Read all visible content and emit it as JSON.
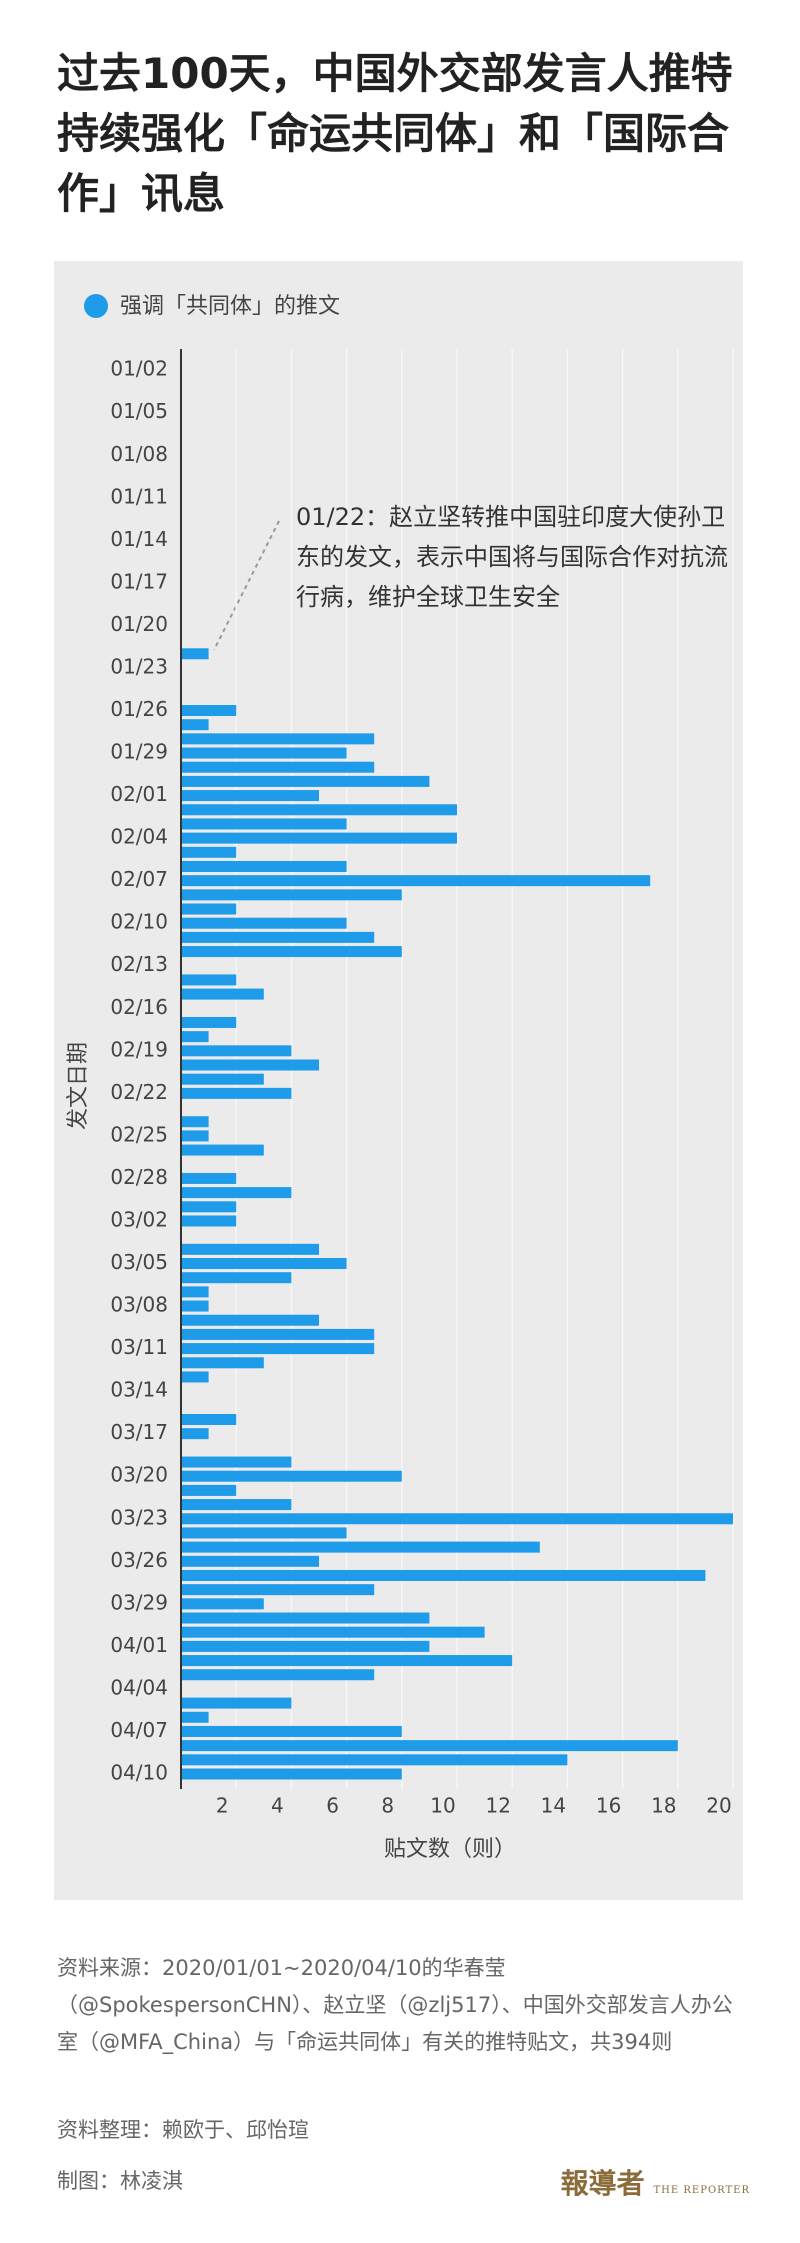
{
  "header": {
    "title": "过去100天，中国外交部发言人推特持续强化「命运共同体」和「国际合作」讯息"
  },
  "chart_data": {
    "type": "bar",
    "orientation": "horizontal",
    "x_label": "贴文数（则）",
    "y_label": "发文日期",
    "categories": [
      null,
      "01/02",
      null,
      null,
      "01/05",
      null,
      null,
      "01/08",
      null,
      null,
      "01/11",
      null,
      null,
      "01/14",
      null,
      null,
      "01/17",
      null,
      null,
      "01/20",
      null,
      null,
      "01/23",
      null,
      null,
      "01/26",
      null,
      null,
      "01/29",
      null,
      null,
      "02/01",
      null,
      null,
      "02/04",
      null,
      null,
      "02/07",
      null,
      null,
      "02/10",
      null,
      null,
      "02/13",
      null,
      null,
      "02/16",
      null,
      null,
      "02/19",
      null,
      null,
      "02/22",
      null,
      null,
      "02/25",
      null,
      null,
      "02/28",
      null,
      null,
      "03/02",
      null,
      null,
      "03/05",
      null,
      null,
      "03/08",
      null,
      null,
      "03/11",
      null,
      null,
      "03/14",
      null,
      null,
      "03/17",
      null,
      null,
      "03/20",
      null,
      null,
      "03/23",
      null,
      null,
      "03/26",
      null,
      null,
      "03/29",
      null,
      null,
      "04/01",
      null,
      null,
      "04/04",
      null,
      null,
      "04/07",
      null,
      null,
      "04/10"
    ],
    "series": [
      {
        "name": "强调「共同体」的推文",
        "color": "#1e9be9",
        "values": [
          0,
          0,
          0,
          0,
          0,
          0,
          0,
          0,
          0,
          0,
          0,
          0,
          0,
          0,
          0,
          0,
          0,
          0,
          0,
          0,
          0,
          1,
          0,
          0,
          0,
          2,
          1,
          7,
          6,
          7,
          9,
          5,
          10,
          6,
          10,
          2,
          6,
          17,
          8,
          2,
          6,
          7,
          8,
          0,
          2,
          3,
          0,
          2,
          1,
          4,
          5,
          3,
          4,
          0,
          1,
          1,
          3,
          0,
          2,
          4,
          2,
          2,
          0,
          5,
          6,
          4,
          1,
          1,
          5,
          7,
          7,
          3,
          1,
          0,
          0,
          2,
          1,
          0,
          4,
          8,
          2,
          4,
          20,
          6,
          13,
          5,
          19,
          7,
          3,
          9,
          11,
          9,
          12,
          7,
          0,
          4,
          1,
          8,
          18,
          14,
          8
        ]
      }
    ],
    "xlim": [
      0,
      20
    ],
    "xticks": [
      2,
      4,
      6,
      8,
      10,
      12,
      14,
      16,
      18,
      20
    ],
    "grid": true,
    "annotation": "01/22：赵立坚转推中国驻印度大使孙卫东的发文，表示中国将与国际合作对抗流行病，维护全球卫生安全"
  },
  "footer": {
    "source": "资料来源：2020/01/01~2020/04/10的华春莹（@SpokespersonCHN）、赵立坚（@zlj517）、中国外交部发言人办公室（@MFA_China）与「命运共同体」有关的推特贴文，共394则",
    "research": "资料整理：赖欧于、邱怡瑄",
    "graphic": "制图：林凌淇",
    "logo": "報導者",
    "logo_en": "THE REPORTER"
  }
}
